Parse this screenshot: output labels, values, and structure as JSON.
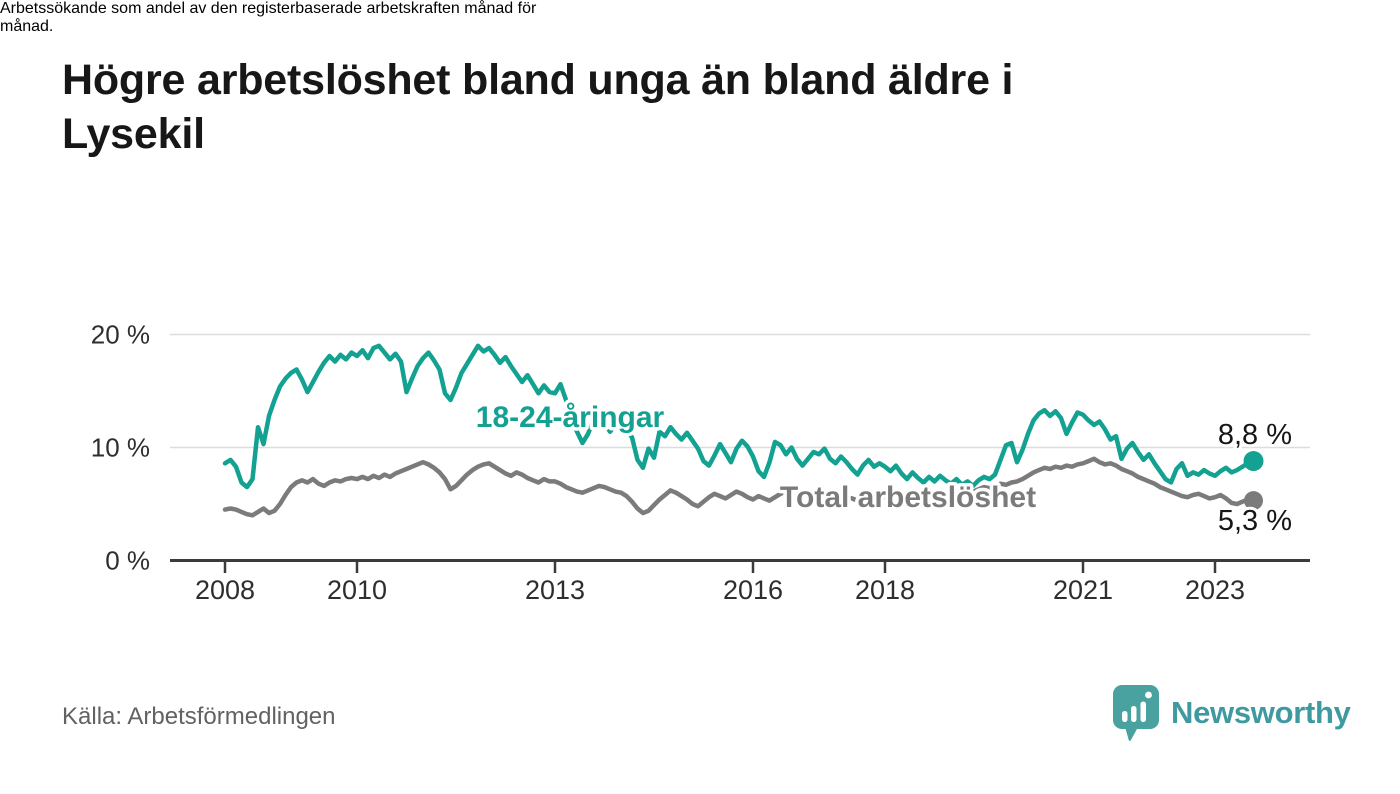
{
  "header": {
    "title": "Högre arbetslöshet bland unga än bland äldre i Lysekil",
    "title_lines": [
      "Högre arbetslöshet bland unga än bland äldre i",
      "Lysekil"
    ],
    "subtitle": "Arbetssökande som andel av den registerbaserade arbetskraften månad för månad.",
    "subtitle_lines": [
      "Arbetssökande som andel av den registerbaserade arbetskraften månad för",
      "månad."
    ]
  },
  "footer": {
    "source": "Källa: Arbetsförmedlingen",
    "brand": "Newsworthy",
    "brand_color": "#3f9aa0",
    "pin_color": "#4aa2a0"
  },
  "chart_data": {
    "type": "line",
    "title": "Högre arbetslöshet bland unga än bland äldre i Lysekil",
    "subtitle": "Arbetssökande som andel av den registerbaserade arbetskraften månad för månad.",
    "source": "Källa: Arbetsförmedlingen",
    "x_unit": "month",
    "x_start": "2008-01",
    "x_end": "2023-08",
    "xlabel": "",
    "ylabel": "",
    "ylim": [
      0,
      21
    ],
    "grid": "horizontal",
    "grid_color": "#dcdcdc",
    "axis_color": "#3b3b3b",
    "yticks": [
      {
        "value": 0,
        "label": "0 %"
      },
      {
        "value": 10,
        "label": "10 %"
      },
      {
        "value": 20,
        "label": "20 %"
      }
    ],
    "xticks": [
      {
        "year": 2008,
        "label": "2008"
      },
      {
        "year": 2010,
        "label": "2010"
      },
      {
        "year": 2013,
        "label": "2013"
      },
      {
        "year": 2016,
        "label": "2016"
      },
      {
        "year": 2018,
        "label": "2018"
      },
      {
        "year": 2021,
        "label": "2021"
      },
      {
        "year": 2023,
        "label": "2023"
      }
    ],
    "series": [
      {
        "name": "18-24-åringar",
        "color": "#13a191",
        "end_label": "8,8 %",
        "last_value": 8.8,
        "values": [
          8.6,
          8.9,
          8.3,
          6.9,
          6.5,
          7.2,
          11.8,
          10.3,
          12.8,
          14.2,
          15.4,
          16.1,
          16.6,
          16.9,
          16.0,
          14.9,
          15.8,
          16.7,
          17.5,
          18.1,
          17.6,
          18.2,
          17.8,
          18.4,
          18.1,
          18.6,
          17.9,
          18.8,
          19.0,
          18.4,
          17.8,
          18.3,
          17.6,
          14.9,
          16.1,
          17.2,
          17.9,
          18.4,
          17.7,
          16.9,
          14.8,
          14.2,
          15.3,
          16.6,
          17.4,
          18.2,
          19.0,
          18.5,
          18.8,
          18.2,
          17.5,
          18.0,
          17.2,
          16.5,
          15.8,
          16.4,
          15.6,
          14.8,
          15.5,
          14.9,
          14.8,
          15.6,
          14.2,
          12.8,
          11.4,
          10.4,
          11.2,
          12.4,
          13.0,
          12.2,
          11.4,
          12.0,
          11.8,
          11.5,
          10.9,
          8.9,
          8.2,
          9.9,
          9.1,
          11.4,
          11.0,
          11.8,
          11.2,
          10.7,
          11.3,
          10.6,
          9.9,
          8.8,
          8.4,
          9.3,
          10.3,
          9.5,
          8.7,
          9.9,
          10.6,
          10.1,
          9.2,
          7.9,
          7.4,
          8.7,
          10.5,
          10.2,
          9.4,
          10.0,
          9.0,
          8.4,
          9.0,
          9.6,
          9.4,
          9.9,
          9.0,
          8.6,
          9.2,
          8.7,
          8.1,
          7.6,
          8.4,
          8.9,
          8.3,
          8.6,
          8.3,
          7.9,
          8.4,
          7.7,
          7.2,
          7.8,
          7.3,
          6.9,
          7.4,
          7.0,
          7.5,
          7.1,
          6.8,
          7.2,
          6.7,
          7.0,
          6.6,
          7.1,
          7.4,
          7.2,
          7.6,
          8.9,
          10.2,
          10.4,
          8.7,
          9.8,
          11.2,
          12.4,
          13.0,
          13.3,
          12.8,
          13.2,
          12.6,
          11.2,
          12.2,
          13.1,
          12.9,
          12.4,
          12.0,
          12.3,
          11.6,
          10.7,
          11.0,
          9.0,
          9.9,
          10.4,
          9.6,
          8.9,
          9.4,
          8.6,
          7.9,
          7.2,
          6.9,
          8.1,
          8.6,
          7.5,
          7.8,
          7.6,
          8.0,
          7.7,
          7.5,
          7.9,
          8.2,
          7.8,
          8.0,
          8.3,
          8.6,
          8.8
        ]
      },
      {
        "name": "Total arbetslöshet",
        "color": "#7b7b7b",
        "end_label": "5,3 %",
        "last_value": 5.3,
        "values": [
          4.5,
          4.6,
          4.5,
          4.3,
          4.1,
          4.0,
          4.3,
          4.6,
          4.2,
          4.4,
          5.0,
          5.8,
          6.5,
          6.9,
          7.1,
          6.9,
          7.2,
          6.8,
          6.6,
          6.9,
          7.1,
          7.0,
          7.2,
          7.3,
          7.2,
          7.4,
          7.2,
          7.5,
          7.3,
          7.6,
          7.4,
          7.7,
          7.9,
          8.1,
          8.3,
          8.5,
          8.7,
          8.5,
          8.2,
          7.8,
          7.2,
          6.3,
          6.6,
          7.1,
          7.6,
          8.0,
          8.3,
          8.5,
          8.6,
          8.3,
          8.0,
          7.7,
          7.5,
          7.8,
          7.6,
          7.3,
          7.1,
          6.9,
          7.2,
          7.0,
          7.0,
          6.8,
          6.5,
          6.3,
          6.1,
          6.0,
          6.2,
          6.4,
          6.6,
          6.5,
          6.3,
          6.1,
          6.0,
          5.7,
          5.2,
          4.6,
          4.2,
          4.4,
          4.9,
          5.4,
          5.8,
          6.2,
          6.0,
          5.7,
          5.4,
          5.0,
          4.8,
          5.2,
          5.6,
          5.9,
          5.7,
          5.5,
          5.8,
          6.1,
          5.9,
          5.6,
          5.4,
          5.7,
          5.5,
          5.3,
          5.6,
          5.9,
          6.1,
          5.8,
          5.5,
          5.7,
          5.9,
          5.6,
          5.8,
          6.0,
          5.8,
          5.6,
          5.4,
          5.6,
          5.5,
          5.3,
          5.5,
          5.7,
          5.6,
          5.8,
          5.6,
          5.4,
          5.3,
          5.5,
          5.4,
          5.2,
          5.3,
          5.5,
          5.4,
          5.2,
          5.1,
          5.2,
          5.2,
          5.4,
          5.6,
          5.9,
          6.1,
          6.3,
          6.5,
          6.4,
          6.6,
          6.8,
          6.7,
          6.9,
          7.0,
          7.2,
          7.5,
          7.8,
          8.0,
          8.2,
          8.1,
          8.3,
          8.2,
          8.4,
          8.3,
          8.5,
          8.6,
          8.8,
          9.0,
          8.7,
          8.5,
          8.6,
          8.4,
          8.1,
          7.9,
          7.7,
          7.4,
          7.2,
          7.0,
          6.8,
          6.5,
          6.3,
          6.1,
          5.9,
          5.7,
          5.6,
          5.8,
          5.9,
          5.7,
          5.5,
          5.6,
          5.8,
          5.5,
          5.1,
          5.0,
          5.2,
          5.4,
          5.3
        ]
      }
    ]
  }
}
